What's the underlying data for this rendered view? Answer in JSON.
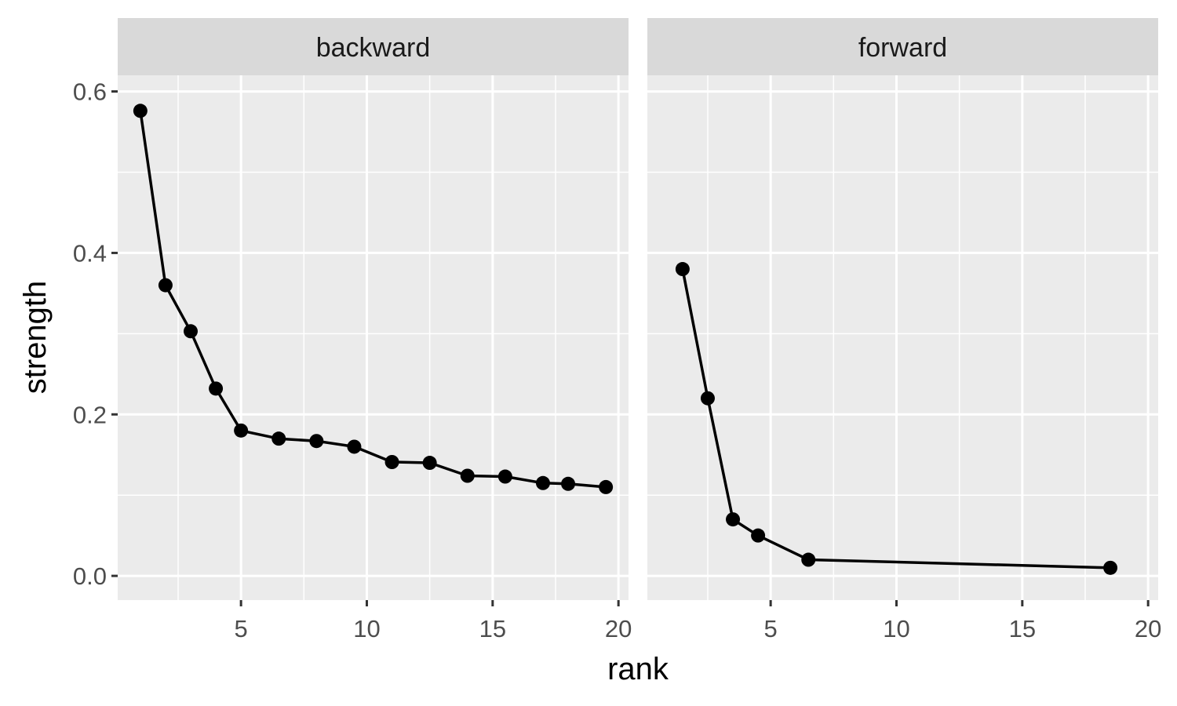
{
  "chart_data": {
    "type": "line",
    "xlabel": "rank",
    "ylabel": "strength",
    "xlim": [
      0.1,
      20.4
    ],
    "ylim": [
      -0.03,
      0.62
    ],
    "x_ticks": [
      5,
      10,
      15,
      20
    ],
    "y_ticks": [
      0.0,
      0.2,
      0.4,
      0.6
    ],
    "x_tick_labels": [
      "5",
      "10",
      "15",
      "20"
    ],
    "y_tick_labels": [
      "0.0",
      "0.2",
      "0.4",
      "0.6"
    ],
    "grid": true,
    "markers": "points",
    "colors": {
      "panel_bg": "#ebebeb",
      "strip_bg": "#d9d9d9",
      "grid": "#ffffff",
      "line": "#000000"
    },
    "panels": [
      {
        "strip": "backward",
        "x": [
          1,
          2,
          3,
          4,
          5,
          6.5,
          8,
          9.5,
          11,
          12.5,
          14,
          15.5,
          17,
          18,
          19.5
        ],
        "y": [
          0.576,
          0.36,
          0.303,
          0.232,
          0.18,
          0.17,
          0.167,
          0.16,
          0.141,
          0.14,
          0.124,
          0.123,
          0.115,
          0.114,
          0.11
        ]
      },
      {
        "strip": "forward",
        "x": [
          1.5,
          2.5,
          3.5,
          4.5,
          6.5,
          18.5
        ],
        "y": [
          0.38,
          0.22,
          0.07,
          0.05,
          0.02,
          0.01
        ]
      }
    ]
  }
}
